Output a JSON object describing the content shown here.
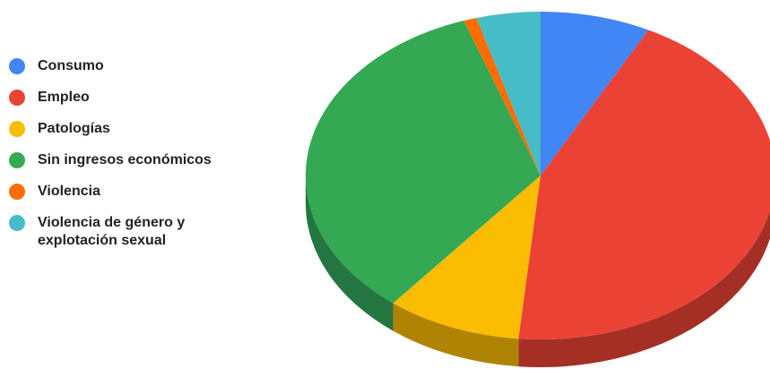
{
  "chart_data": {
    "type": "pie",
    "style": "3d",
    "legend_position": "left",
    "title": "",
    "categories": [
      "Consumo",
      "Empleo",
      "Patologías",
      "Sin ingresos económicos",
      "Violencia",
      "Violencia de género y explotación sexual"
    ],
    "values": [
      7.6,
      43.9,
      9.3,
      33.9,
      0.9,
      4.4
    ],
    "value_unit": "percent",
    "colors": [
      "#4285f4",
      "#ea4335",
      "#fbbc04",
      "#34a853",
      "#ff6d01",
      "#46bdc6"
    ],
    "side_colors": [
      "#2f5fab",
      "#a52f25",
      "#b08403",
      "#247640",
      "#b34d01",
      "#31848b"
    ]
  },
  "legend": [
    {
      "label": "Consumo",
      "icon": "legend-dot-blue"
    },
    {
      "label": "Empleo",
      "icon": "legend-dot-red"
    },
    {
      "label": "Patologías",
      "icon": "legend-dot-yellow"
    },
    {
      "label": "Sin ingresos económicos",
      "icon": "legend-dot-green"
    },
    {
      "label": "Violencia",
      "icon": "legend-dot-orange"
    },
    {
      "label": "Violencia de género y\nexplotación sexual",
      "icon": "legend-dot-teal"
    }
  ]
}
